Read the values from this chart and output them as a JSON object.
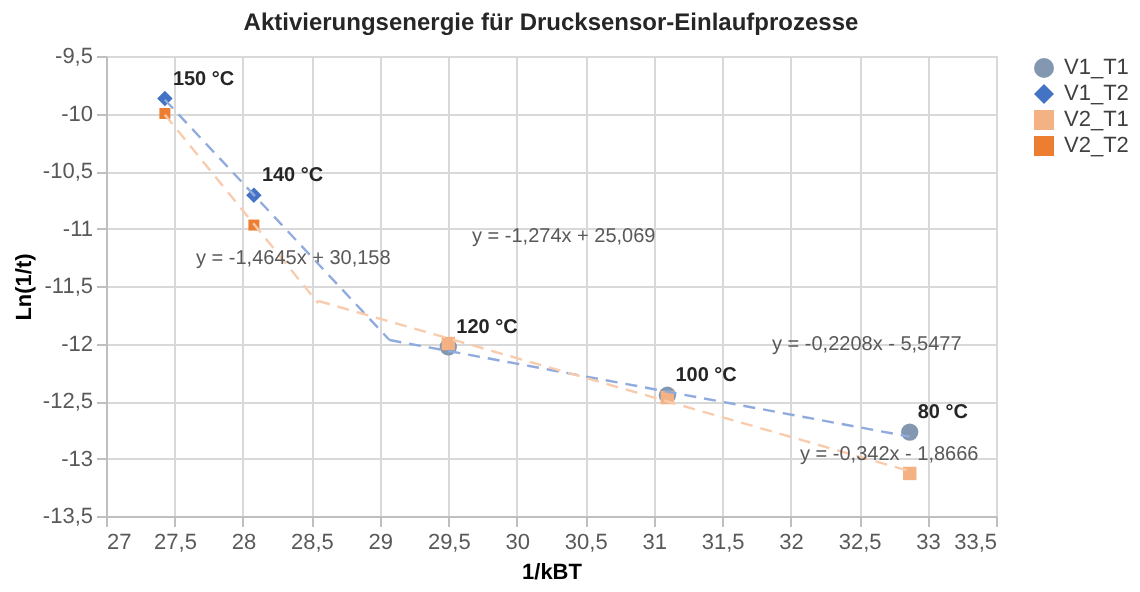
{
  "chart_data": {
    "type": "scatter",
    "title": "Aktivierungsenergie für Drucksensor-Einlaufprozesse",
    "xlabel": "1/kBT",
    "ylabel": "Ln(1/t)",
    "xlim": [
      27,
      33.5
    ],
    "ylim": [
      -13.5,
      -9.5
    ],
    "xticks": [
      27,
      {
        "value": 27.5,
        "label": "27,5"
      },
      28,
      {
        "value": 28.5,
        "label": "28,5"
      },
      29,
      {
        "value": 29.5,
        "label": "29,5"
      },
      30,
      {
        "value": 30.5,
        "label": "30,5"
      },
      31,
      {
        "value": 31.5,
        "label": "31,5"
      },
      32,
      {
        "value": 32.5,
        "label": "32,5"
      },
      33,
      {
        "value": 33.5,
        "label": "33,5"
      }
    ],
    "yticks": [
      {
        "value": -13.5,
        "label": "-13,5"
      },
      -13,
      {
        "value": -12.5,
        "label": "-12,5"
      },
      -12,
      {
        "value": -11.5,
        "label": "-11,5"
      },
      -11,
      {
        "value": -10.5,
        "label": "-10,5"
      },
      -10,
      {
        "value": -9.5,
        "label": "-9,5"
      }
    ],
    "grid": true,
    "legend": "right",
    "series": [
      {
        "name": "V1_T1",
        "marker": "circle",
        "color": "#8497b0",
        "x": [
          29.5,
          31.1,
          32.87
        ],
        "values": [
          -12.03,
          -12.45,
          -12.77
        ]
      },
      {
        "name": "V1_T2",
        "marker": "diamond",
        "color": "#4472c4",
        "x": [
          27.43,
          28.08
        ],
        "values": [
          -9.87,
          -10.71
        ]
      },
      {
        "name": "V2_T1",
        "marker": "square",
        "color": "#f4b183",
        "x": [
          29.5,
          31.1,
          32.87
        ],
        "values": [
          -12.0,
          -12.47,
          -13.13
        ]
      },
      {
        "name": "V2_T2",
        "marker": "square",
        "color": "#ed7d31",
        "x": [
          27.43,
          28.08
        ],
        "values": [
          -10.0,
          -10.97
        ]
      },
      {
        "type": "line",
        "line_style": "dashed",
        "color": "#8faadc",
        "x": [
          27.43,
          29.07
        ],
        "values": [
          -9.88,
          -11.97
        ]
      },
      {
        "type": "line",
        "line_style": "dashed",
        "color": "#8faadc",
        "x": [
          29.07,
          32.87
        ],
        "values": [
          -11.97,
          -12.81
        ]
      },
      {
        "type": "line",
        "line_style": "dashed",
        "color": "#f8cbad",
        "x": [
          27.43,
          28.55
        ],
        "values": [
          -10.01,
          -11.65
        ]
      },
      {
        "type": "line",
        "line_style": "dashed",
        "color": "#f8cbad",
        "x": [
          28.55,
          32.87
        ],
        "values": [
          -11.63,
          -13.11
        ]
      }
    ],
    "annotations": [
      {
        "text": "150 °C",
        "x": 27.43,
        "y": -9.87
      },
      {
        "text": "140 °C",
        "x": 28.08,
        "y": -10.71
      },
      {
        "text": "120 °C",
        "x": 29.5,
        "y": -12.03
      },
      {
        "text": "100 °C",
        "x": 31.1,
        "y": -12.45
      },
      {
        "text": "80 °C",
        "x": 32.87,
        "y": -12.77
      },
      "y = -1,274x + 25,069",
      "y = -1,4645x + 30,158",
      "y = -0,2208x - 5,5477",
      "y = -0,342x - 1,8666"
    ]
  }
}
